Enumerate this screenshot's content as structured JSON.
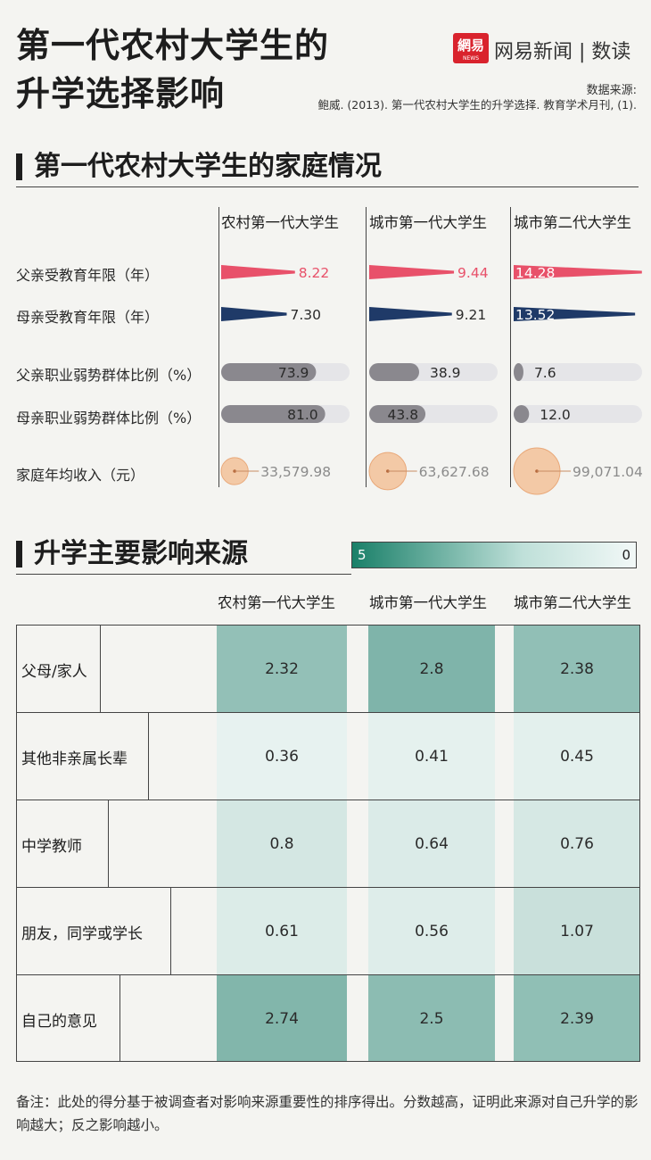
{
  "header": {
    "title_line1": "第一代农村大学生的",
    "title_line2": "升学选择影响",
    "logo_text": "網易",
    "logo_sub": "NEWS",
    "brand": "网易新闻 | 数读",
    "source_label": "数据来源:",
    "source_text": "鲍威. (2013). 第一代农村大学生的升学选择. 教育学术月刊, (1)."
  },
  "section1": {
    "title": "第一代农村大学生的家庭情况"
  },
  "section2": {
    "title": "升学主要影响来源",
    "legend_max": "5",
    "legend_min": "0"
  },
  "groups": [
    "农村第一代大学生",
    "城市第一代大学生",
    "城市第二代大学生"
  ],
  "colors": {
    "father": "#e8516a",
    "mother": "#1f3a68",
    "bar_gray": "#8a888e",
    "track": "#e5e5e8",
    "income": "#f3c9a6",
    "heat": "#1a8069"
  },
  "chart_data": [
    {
      "type": "bar",
      "title": "第一代农村大学生的家庭情况",
      "categories": [
        "农村第一代大学生",
        "城市第一代大学生",
        "城市第二代大学生"
      ],
      "series": [
        {
          "name": "父亲受教育年限（年）",
          "values": [
            8.22,
            9.44,
            14.28
          ],
          "labels": [
            "8.22",
            "9.44",
            "14.28"
          ]
        },
        {
          "name": "母亲受教育年限（年）",
          "values": [
            7.3,
            9.21,
            13.52
          ],
          "labels": [
            "7.30",
            "9.21",
            "13.52"
          ]
        },
        {
          "name": "父亲职业弱势群体比例（%）",
          "values": [
            73.9,
            38.9,
            7.6
          ],
          "labels": [
            "73.9",
            "38.9",
            "7.6"
          ]
        },
        {
          "name": "母亲职业弱势群体比例（%）",
          "values": [
            81.0,
            43.8,
            12.0
          ],
          "labels": [
            "81.0",
            "43.8",
            "12.0"
          ]
        },
        {
          "name": "家庭年均收入（元）",
          "values": [
            33579.98,
            63627.68,
            99071.04
          ],
          "labels": [
            "33,579.98",
            "63,627.68",
            "99,071.04"
          ]
        }
      ]
    },
    {
      "type": "heatmap",
      "title": "升学主要影响来源",
      "categories": [
        "农村第一代大学生",
        "城市第一代大学生",
        "城市第二代大学生"
      ],
      "scale": [
        0,
        5
      ],
      "series": [
        {
          "name": "父母/家人",
          "values": [
            2.32,
            2.8,
            2.38
          ],
          "labels": [
            "2.32",
            "2.8",
            "2.38"
          ]
        },
        {
          "name": "其他非亲属长辈",
          "values": [
            0.36,
            0.41,
            0.45
          ],
          "labels": [
            "0.36",
            "0.41",
            "0.45"
          ]
        },
        {
          "name": "中学教师",
          "values": [
            0.8,
            0.64,
            0.76
          ],
          "labels": [
            "0.8",
            "0.64",
            "0.76"
          ]
        },
        {
          "name": "朋友，同学或学长",
          "values": [
            0.61,
            0.56,
            1.07
          ],
          "labels": [
            "0.61",
            "0.56",
            "1.07"
          ]
        },
        {
          "name": "自己的意见",
          "values": [
            2.74,
            2.5,
            2.39
          ],
          "labels": [
            "2.74",
            "2.5",
            "2.39"
          ]
        }
      ]
    }
  ],
  "note": "备注：此处的得分基于被调查者对影响来源重要性的排序得出。分数越高，证明此来源对自己升学的影响越大；反之影响越小。"
}
